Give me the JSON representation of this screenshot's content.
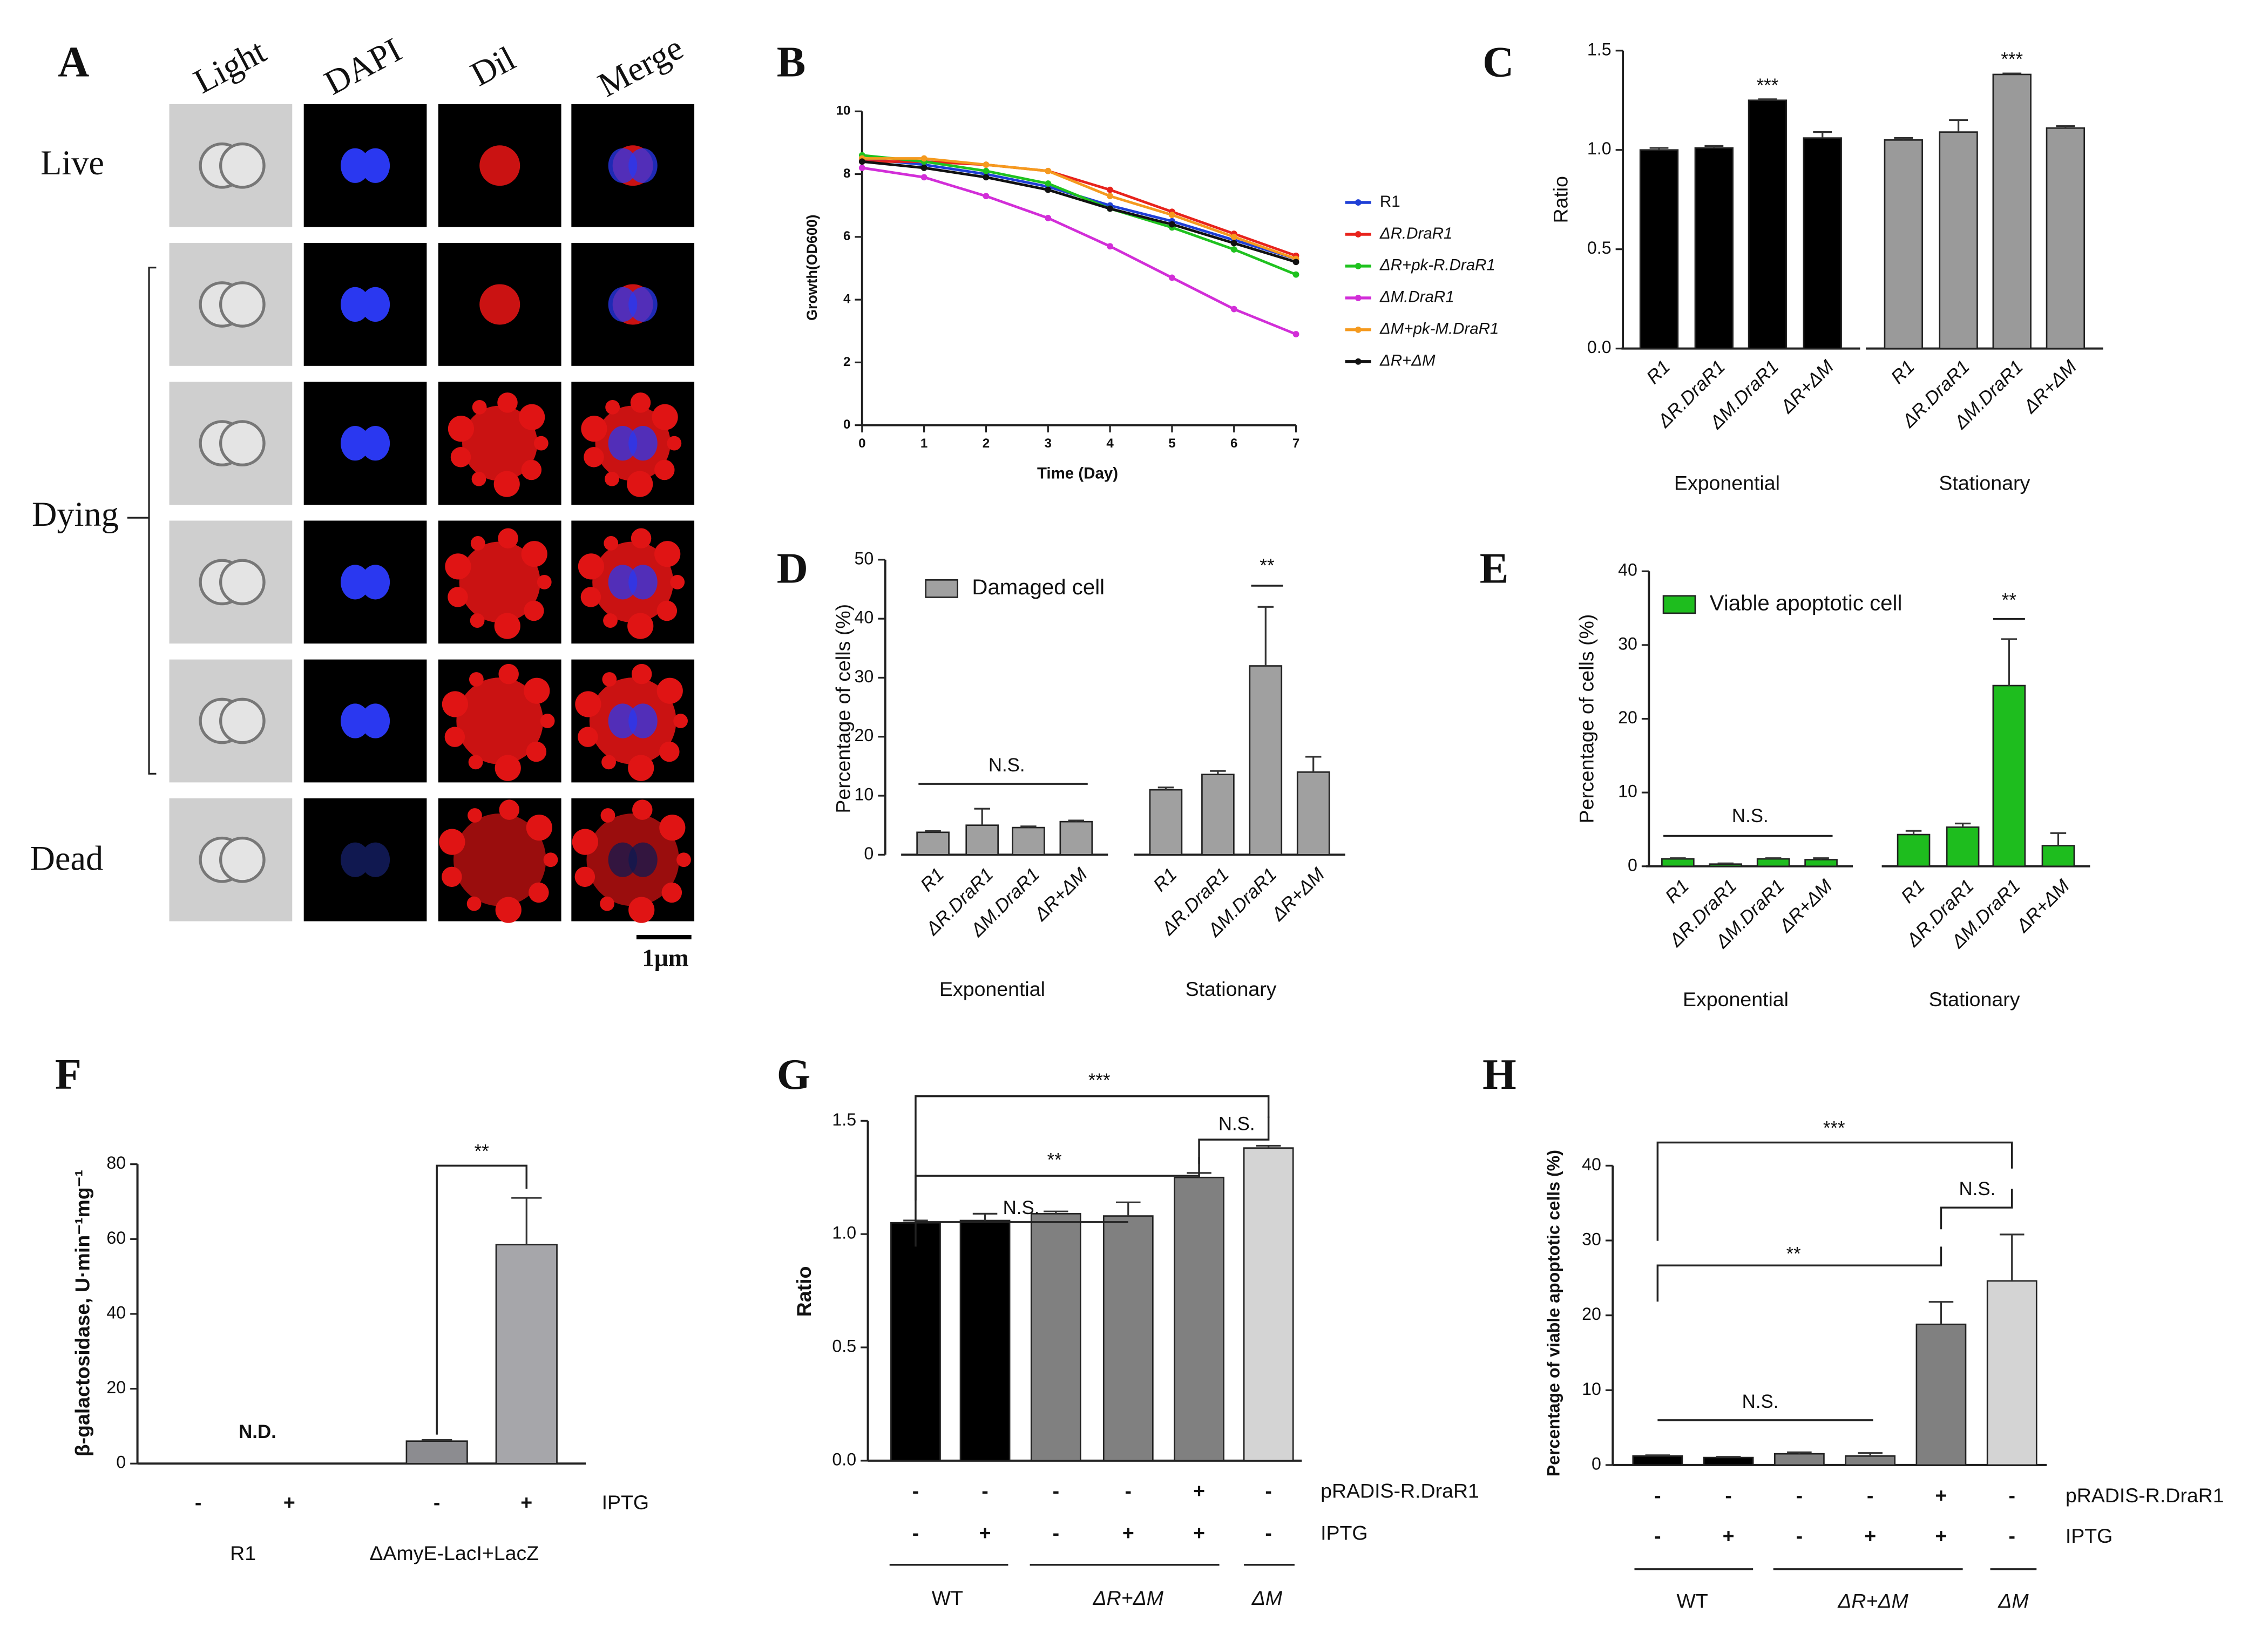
{
  "panel_a": {
    "letter": "A",
    "columns": [
      "Light",
      "DAPI",
      "Dil",
      "Merge"
    ],
    "rows": [
      "Live",
      "Dying",
      "Dead"
    ],
    "scale_bar": "1μm"
  },
  "chart_data": [
    {
      "letter": "B",
      "type": "line",
      "x_label": "Time (Day)",
      "y_label": "Growth(OD600)",
      "x": [
        0,
        1,
        2,
        3,
        4,
        5,
        6,
        7
      ],
      "xlim": [
        0,
        7
      ],
      "xticks": [
        0,
        1,
        2,
        3,
        4,
        5,
        6,
        7
      ],
      "ylim": [
        0,
        10
      ],
      "yticks": [
        0,
        2,
        4,
        6,
        8,
        10
      ],
      "series": [
        {
          "name": "R1",
          "color": "#1f3fd6",
          "values": [
            8.5,
            8.3,
            8.0,
            7.6,
            7.0,
            6.5,
            5.9,
            5.3
          ]
        },
        {
          "name": "ΔR.DraR1",
          "color": "#e8231c",
          "values": [
            8.4,
            8.4,
            8.3,
            8.1,
            7.5,
            6.8,
            6.1,
            5.4
          ]
        },
        {
          "name": "ΔR+pk-R.DraR1",
          "color": "#1fc21f",
          "values": [
            8.6,
            8.4,
            8.1,
            7.7,
            6.9,
            6.3,
            5.6,
            4.8
          ]
        },
        {
          "name": "ΔM.DraR1",
          "color": "#d22ed8",
          "values": [
            8.2,
            7.9,
            7.3,
            6.6,
            5.7,
            4.7,
            3.7,
            2.9
          ]
        },
        {
          "name": "ΔM+pk-M.DraR1",
          "color": "#f59a1e",
          "values": [
            8.5,
            8.5,
            8.3,
            8.1,
            7.3,
            6.7,
            6.0,
            5.3
          ]
        },
        {
          "name": "ΔR+ΔM",
          "color": "#111111",
          "values": [
            8.4,
            8.2,
            7.9,
            7.5,
            6.9,
            6.4,
            5.8,
            5.2
          ]
        }
      ]
    },
    {
      "letter": "C",
      "type": "bar",
      "y_label": "Ratio",
      "ylim": [
        0,
        1.5
      ],
      "yticks": [
        {
          "value": 0,
          "label": "0.0"
        },
        0.5,
        {
          "value": 1,
          "label": "1.0"
        },
        1.5
      ],
      "groups": [
        {
          "name": "Exponential",
          "color": "#000000",
          "categories": [
            "R1",
            "ΔR.DraR1",
            "ΔM.DraR1",
            "ΔR+ΔM"
          ],
          "values": [
            1.0,
            1.01,
            1.25,
            1.06
          ],
          "errors": [
            0.01,
            0.01,
            0.005,
            0.03
          ]
        },
        {
          "name": "Stationary",
          "color": "#9a9a9a",
          "categories": [
            "R1",
            "ΔR.DraR1",
            "ΔM.DraR1",
            "ΔR+ΔM"
          ],
          "values": [
            1.05,
            1.09,
            1.38,
            1.11
          ],
          "errors": [
            0.01,
            0.06,
            0.005,
            0.01
          ]
        }
      ],
      "annotations": [
        "***",
        "***"
      ]
    },
    {
      "letter": "D",
      "type": "bar",
      "y_label": "Percentage of cells (%)",
      "legend_label": "Damaged cell",
      "ylim": [
        0,
        50
      ],
      "yticks": [
        0,
        10,
        20,
        30,
        40,
        50
      ],
      "groups": [
        {
          "name": "Exponential",
          "color": "#a0a0a0",
          "categories": [
            "R1",
            "ΔR.DraR1",
            "ΔM.DraR1",
            "ΔR+ΔM"
          ],
          "values": [
            3.8,
            5.0,
            4.6,
            5.6
          ],
          "errors": [
            0.2,
            2.8,
            0.2,
            0.2
          ]
        },
        {
          "name": "Stationary",
          "color": "#a0a0a0",
          "categories": [
            "R1",
            "ΔR.DraR1",
            "ΔM.DraR1",
            "ΔR+ΔM"
          ],
          "values": [
            11.0,
            13.6,
            32.0,
            14.0
          ],
          "errors": [
            0.4,
            0.6,
            10.0,
            2.6
          ]
        }
      ],
      "annotations": [
        "N.S.",
        "**"
      ]
    },
    {
      "letter": "E",
      "type": "bar",
      "y_label": "Percentage of cells (%)",
      "legend_label": "Viable apoptotic cell",
      "ylim": [
        0,
        40
      ],
      "yticks": [
        0,
        10,
        20,
        30,
        40
      ],
      "groups": [
        {
          "name": "Exponential",
          "color": "#1ebd1e",
          "categories": [
            "R1",
            "ΔR.DraR1",
            "ΔM.DraR1",
            "ΔR+ΔM"
          ],
          "values": [
            1.0,
            0.3,
            1.0,
            0.9
          ],
          "errors": [
            0.1,
            0.1,
            0.1,
            0.2
          ]
        },
        {
          "name": "Stationary",
          "color": "#1ebd1e",
          "categories": [
            "R1",
            "ΔR.DraR1",
            "ΔM.DraR1",
            "ΔR+ΔM"
          ],
          "values": [
            4.3,
            5.3,
            24.5,
            2.8
          ],
          "errors": [
            0.5,
            0.5,
            6.3,
            1.7
          ]
        }
      ],
      "annotations": [
        "N.S.",
        "**"
      ]
    },
    {
      "letter": "F",
      "type": "bar",
      "y_label": "β-galactosidase, U·min⁻¹mg⁻¹",
      "ylim": [
        0,
        80
      ],
      "yticks": [
        0,
        20,
        40,
        60,
        80
      ],
      "groups": [
        {
          "name": "R1",
          "values": [
            null,
            null
          ],
          "errors": [
            null,
            null
          ]
        },
        {
          "name": "ΔAmyE-LacI+LacZ",
          "colors": [
            "#8c8c90",
            "#a6a6aa"
          ],
          "values": [
            6.0,
            58.5
          ],
          "errors": [
            0.3,
            12.5
          ]
        }
      ],
      "conditions": [
        {
          "name": "IPTG",
          "labels": [
            "-",
            "+",
            "-",
            "+"
          ]
        }
      ],
      "annotations": [
        "N.D.",
        "**"
      ]
    },
    {
      "letter": "G",
      "type": "bar",
      "y_label": "Ratio",
      "ylim": [
        0,
        1.5
      ],
      "yticks": [
        {
          "value": 0,
          "label": "0.0"
        },
        0.5,
        {
          "value": 1,
          "label": "1.0"
        },
        1.5
      ],
      "groups": [
        {
          "name": "WT",
          "color": "#000000",
          "values": [
            1.05,
            1.06
          ],
          "errors": [
            0.01,
            0.03
          ]
        },
        {
          "name": "ΔR+ΔM",
          "color": "#808080",
          "values": [
            1.09,
            1.08,
            1.25
          ],
          "errors": [
            0.01,
            0.06,
            0.02
          ]
        },
        {
          "name": "ΔM",
          "color": "#d4d4d4",
          "values": [
            1.38
          ],
          "errors": [
            0.01
          ]
        }
      ],
      "conditions": [
        {
          "name": "pRADIS-R.DraR1",
          "labels": [
            "-",
            "-",
            "-",
            "-",
            "+",
            "-"
          ]
        },
        {
          "name": "IPTG",
          "labels": [
            "-",
            "+",
            "-",
            "+",
            "+",
            "-"
          ]
        }
      ],
      "annotations": [
        "***",
        "N.S.",
        "**",
        "N.S."
      ]
    },
    {
      "letter": "H",
      "type": "bar",
      "y_label": "Percentage of viable apoptotic cells (%)",
      "ylim": [
        0,
        40
      ],
      "yticks": [
        0,
        10,
        20,
        30,
        40
      ],
      "groups": [
        {
          "name": "WT",
          "color": "#000000",
          "values": [
            1.2,
            1.0
          ],
          "errors": [
            0.1,
            0.1
          ]
        },
        {
          "name": "ΔR+ΔM",
          "color": "#808080",
          "values": [
            1.5,
            1.2,
            18.8
          ],
          "errors": [
            0.2,
            0.4,
            3.0
          ]
        },
        {
          "name": "ΔM",
          "color": "#d4d4d4",
          "values": [
            24.6
          ],
          "errors": [
            6.2
          ]
        }
      ],
      "conditions": [
        {
          "name": "pRADIS-R.DraR1",
          "labels": [
            "-",
            "-",
            "-",
            "-",
            "+",
            "-"
          ]
        },
        {
          "name": "IPTG",
          "labels": [
            "-",
            "+",
            "-",
            "+",
            "+",
            "-"
          ]
        }
      ],
      "annotations": [
        "***",
        "N.S.",
        "**",
        "N.S."
      ]
    }
  ]
}
